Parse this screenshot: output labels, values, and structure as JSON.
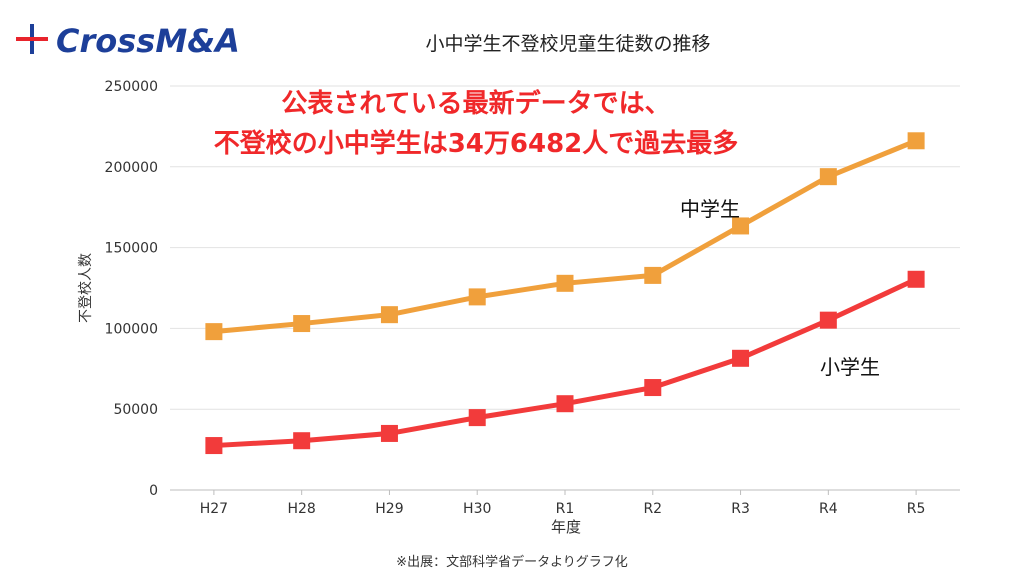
{
  "brand": {
    "name": "CrossM&A",
    "colors": {
      "cross_blue": "#1d3f99",
      "cross_red": "#e8242c"
    }
  },
  "callout": {
    "line1": "公表されている最新データでは、",
    "line2": "不登校の小中学生は34万6482人で過去最多"
  },
  "source_note": "※出展：文部科学省データよりグラフ化",
  "chart_data": {
    "type": "line",
    "title": "小中学生不登校児童生徒数の推移",
    "xlabel": "年度",
    "ylabel": "不登校人数",
    "categories": [
      "H27",
      "H28",
      "H29",
      "H30",
      "R1",
      "R2",
      "R3",
      "R4",
      "R5"
    ],
    "ylim": [
      0,
      250000
    ],
    "yticks": [
      0,
      50000,
      100000,
      150000,
      200000,
      250000
    ],
    "grid": true,
    "series": [
      {
        "name": "中学生",
        "color": "#f0a03c",
        "values": [
          98000,
          103000,
          108500,
          119500,
          127900,
          132800,
          163400,
          193900,
          216100
        ]
      },
      {
        "name": "小学生",
        "color": "#f23b3b",
        "values": [
          27500,
          30500,
          35000,
          44800,
          53400,
          63400,
          81500,
          105100,
          130400
        ]
      }
    ]
  }
}
